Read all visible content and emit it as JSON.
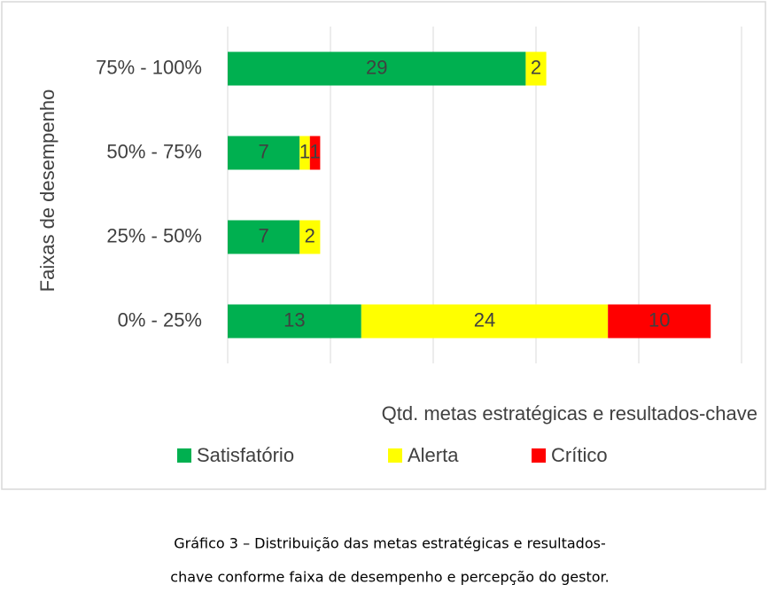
{
  "chart_data": {
    "type": "stacked-bar-horizontal",
    "categories": [
      "75% - 100%",
      "50% - 75%",
      "25% - 50%",
      "0% - 25%"
    ],
    "series": [
      {
        "name": "Satisfatório",
        "color": "#00b050",
        "values": [
          29,
          7,
          7,
          13
        ]
      },
      {
        "name": "Alerta",
        "color": "#ffff00",
        "values": [
          2,
          1,
          2,
          24
        ]
      },
      {
        "name": "Crítico",
        "color": "#ff0000",
        "values": [
          null,
          1,
          null,
          10
        ]
      }
    ],
    "xlim": [
      0,
      50
    ],
    "xticks": [
      0,
      10,
      20,
      30,
      40,
      50
    ],
    "grid": true,
    "x_label": "Qtd. metas estratégicas e resultados-chave",
    "y_label": "Faixas de desempenho",
    "legend": "bottom"
  },
  "caption": [
    "Gráfico 3 – Distribuição das metas estratégicas e resultados-",
    "chave conforme faixa de desempenho e percepção do gestor."
  ]
}
